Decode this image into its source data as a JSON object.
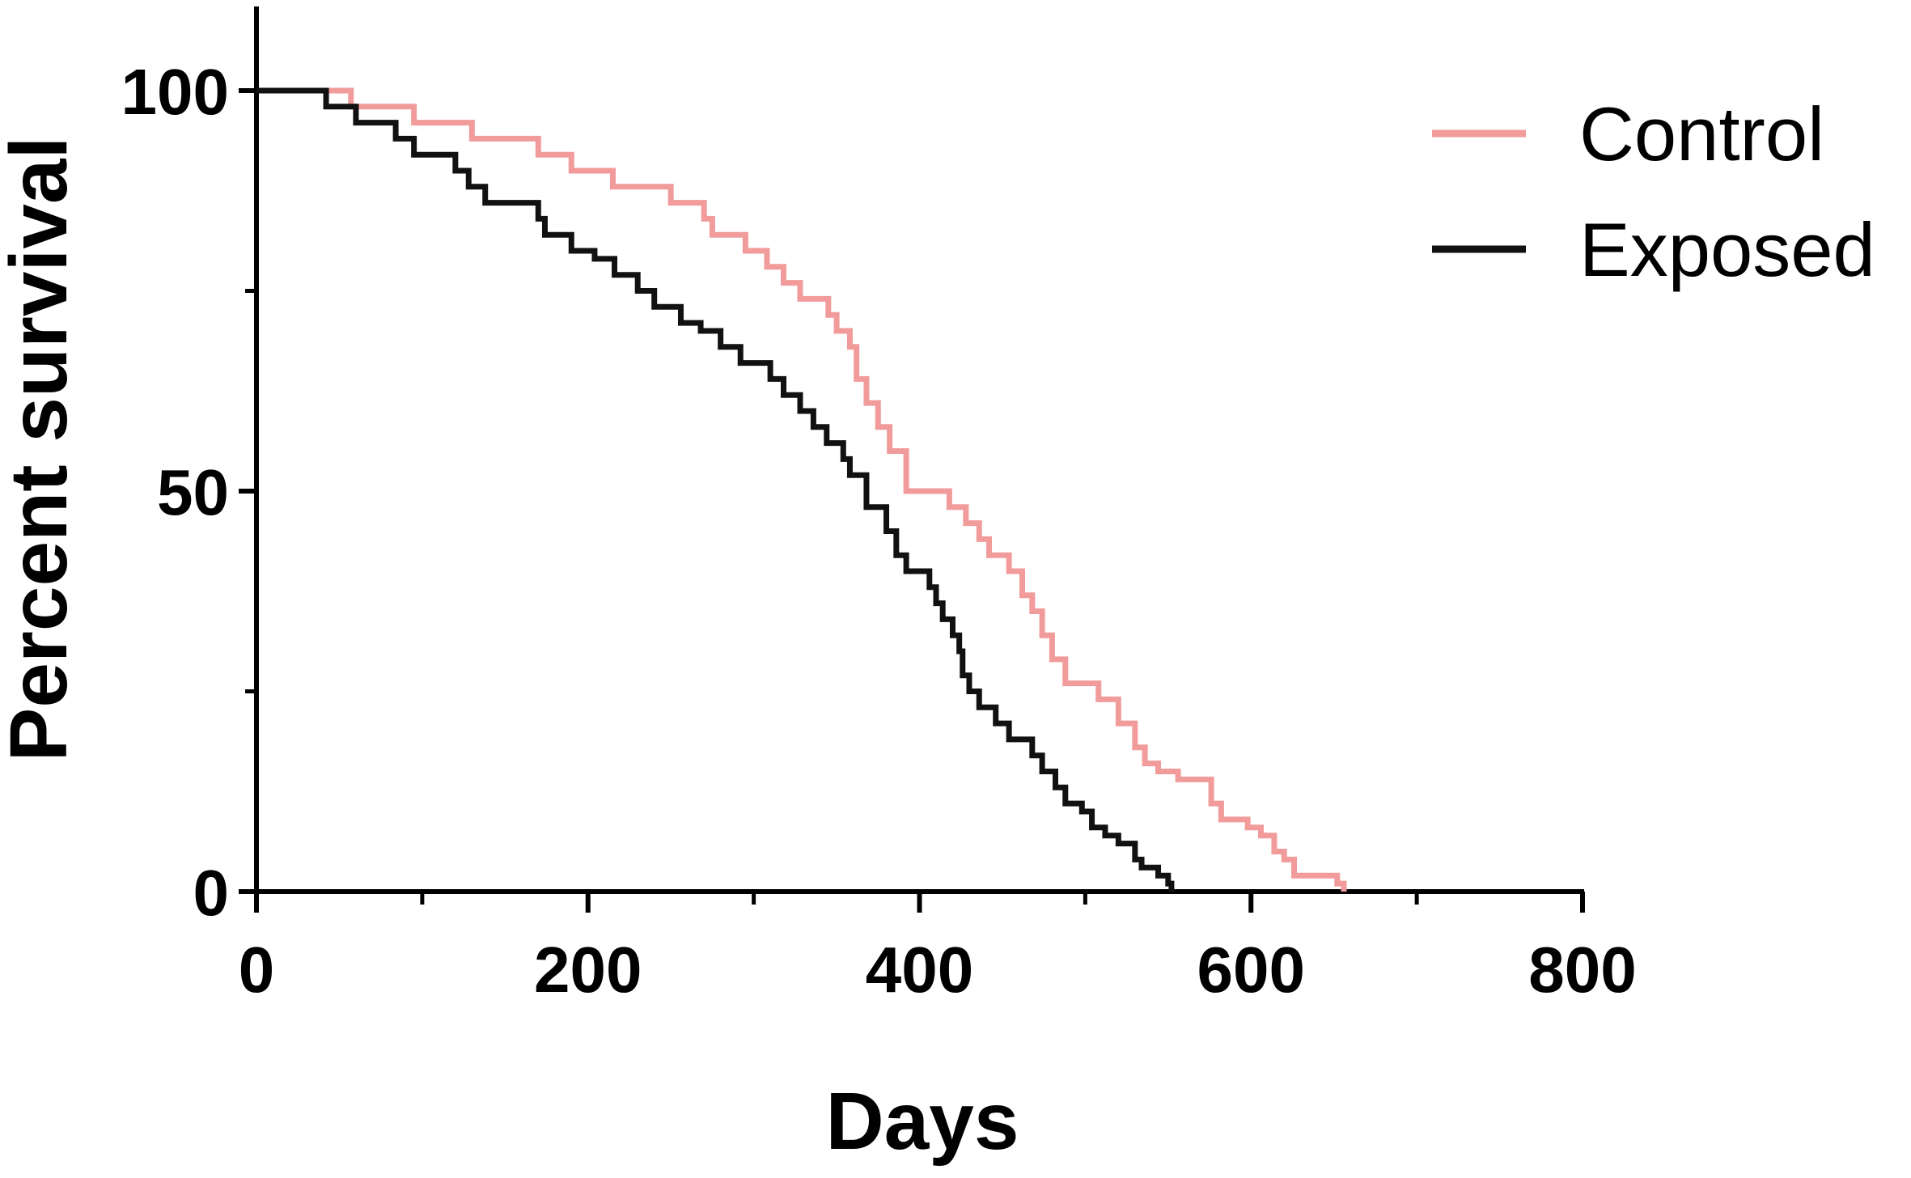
{
  "chart_data": {
    "type": "line",
    "step": true,
    "xlabel": "Days",
    "ylabel": "Percent survival",
    "xlim": [
      0,
      800
    ],
    "ylim": [
      0,
      100
    ],
    "x_ticks": [
      0,
      200,
      400,
      600,
      800
    ],
    "x_tick_labels": [
      "0",
      "200",
      "400",
      "600",
      "800"
    ],
    "y_ticks": [
      0,
      50,
      100
    ],
    "y_tick_labels": [
      "0",
      "50",
      "100"
    ],
    "grid": false,
    "legend_position": "top-right",
    "series": [
      {
        "name": "Control",
        "color": "#f29b9b",
        "points": [
          [
            0,
            100
          ],
          [
            57,
            98
          ],
          [
            95,
            96
          ],
          [
            130,
            94
          ],
          [
            170,
            92
          ],
          [
            190,
            90
          ],
          [
            215,
            88
          ],
          [
            250,
            86
          ],
          [
            270,
            84
          ],
          [
            275,
            82
          ],
          [
            295,
            80
          ],
          [
            308,
            78
          ],
          [
            318,
            76
          ],
          [
            328,
            74
          ],
          [
            345,
            72
          ],
          [
            350,
            70
          ],
          [
            358,
            68
          ],
          [
            362,
            64
          ],
          [
            368,
            61
          ],
          [
            375,
            58
          ],
          [
            382,
            55
          ],
          [
            392,
            50
          ],
          [
            418,
            48
          ],
          [
            428,
            46
          ],
          [
            436,
            44
          ],
          [
            442,
            42
          ],
          [
            454,
            40
          ],
          [
            462,
            37
          ],
          [
            468,
            35
          ],
          [
            474,
            32
          ],
          [
            480,
            29
          ],
          [
            488,
            26
          ],
          [
            508,
            24
          ],
          [
            520,
            21
          ],
          [
            530,
            18
          ],
          [
            536,
            16
          ],
          [
            544,
            15
          ],
          [
            556,
            14
          ],
          [
            576,
            11
          ],
          [
            582,
            9
          ],
          [
            598,
            8
          ],
          [
            606,
            7
          ],
          [
            614,
            5
          ],
          [
            620,
            4
          ],
          [
            626,
            2
          ],
          [
            642,
            2
          ],
          [
            652,
            1
          ],
          [
            656,
            0
          ]
        ]
      },
      {
        "name": "Exposed",
        "color": "#111111",
        "points": [
          [
            0,
            100
          ],
          [
            42,
            98
          ],
          [
            60,
            96
          ],
          [
            84,
            94
          ],
          [
            95,
            92
          ],
          [
            120,
            90
          ],
          [
            128,
            88
          ],
          [
            138,
            86
          ],
          [
            170,
            84
          ],
          [
            174,
            82
          ],
          [
            190,
            80
          ],
          [
            204,
            79
          ],
          [
            216,
            77
          ],
          [
            230,
            75
          ],
          [
            240,
            73
          ],
          [
            256,
            71
          ],
          [
            268,
            70
          ],
          [
            280,
            68
          ],
          [
            292,
            66
          ],
          [
            310,
            64
          ],
          [
            318,
            62
          ],
          [
            328,
            60
          ],
          [
            336,
            58
          ],
          [
            344,
            56
          ],
          [
            354,
            54
          ],
          [
            358,
            52
          ],
          [
            368,
            48
          ],
          [
            380,
            45
          ],
          [
            386,
            42
          ],
          [
            392,
            40
          ],
          [
            406,
            38
          ],
          [
            410,
            36
          ],
          [
            414,
            34
          ],
          [
            420,
            32
          ],
          [
            424,
            30
          ],
          [
            426,
            27
          ],
          [
            430,
            25
          ],
          [
            436,
            23
          ],
          [
            446,
            21
          ],
          [
            454,
            19
          ],
          [
            468,
            17
          ],
          [
            474,
            15
          ],
          [
            482,
            13
          ],
          [
            488,
            11
          ],
          [
            498,
            10
          ],
          [
            504,
            8
          ],
          [
            512,
            7
          ],
          [
            520,
            6
          ],
          [
            530,
            4
          ],
          [
            534,
            3
          ],
          [
            544,
            2
          ],
          [
            550,
            1
          ],
          [
            552,
            0
          ]
        ]
      }
    ]
  }
}
